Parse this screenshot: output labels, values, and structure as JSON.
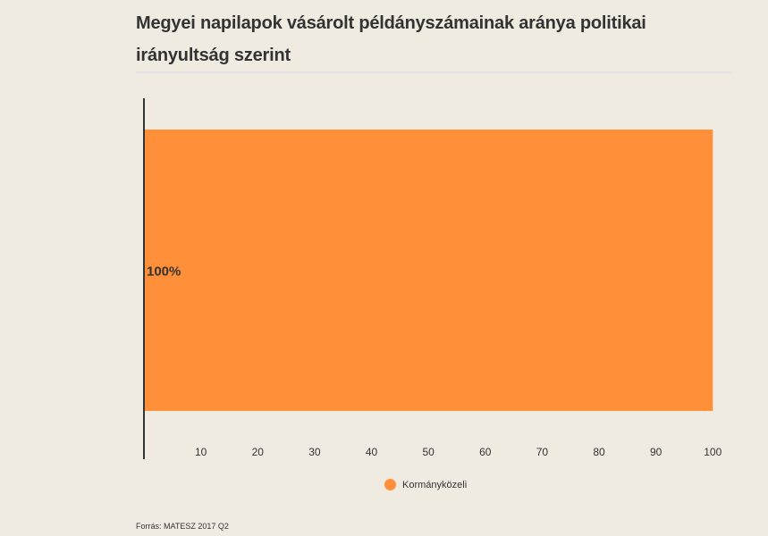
{
  "chart_data": {
    "type": "bar",
    "orientation": "horizontal",
    "stacked": true,
    "title": "Megyei napilapok vásárolt példányszámainak aránya politikai irányultság szerint",
    "categories": [
      ""
    ],
    "series": [
      {
        "name": "Kormányközeli",
        "values": [
          100
        ],
        "label": "100%",
        "color": "#ff8f38"
      }
    ],
    "xlim": [
      0,
      102
    ],
    "xticks": [
      10,
      20,
      30,
      40,
      50,
      60,
      70,
      80,
      90,
      100
    ],
    "legend_position": "bottom-center",
    "grid": false
  },
  "source": "Forrás: MATESZ 2017 Q2"
}
